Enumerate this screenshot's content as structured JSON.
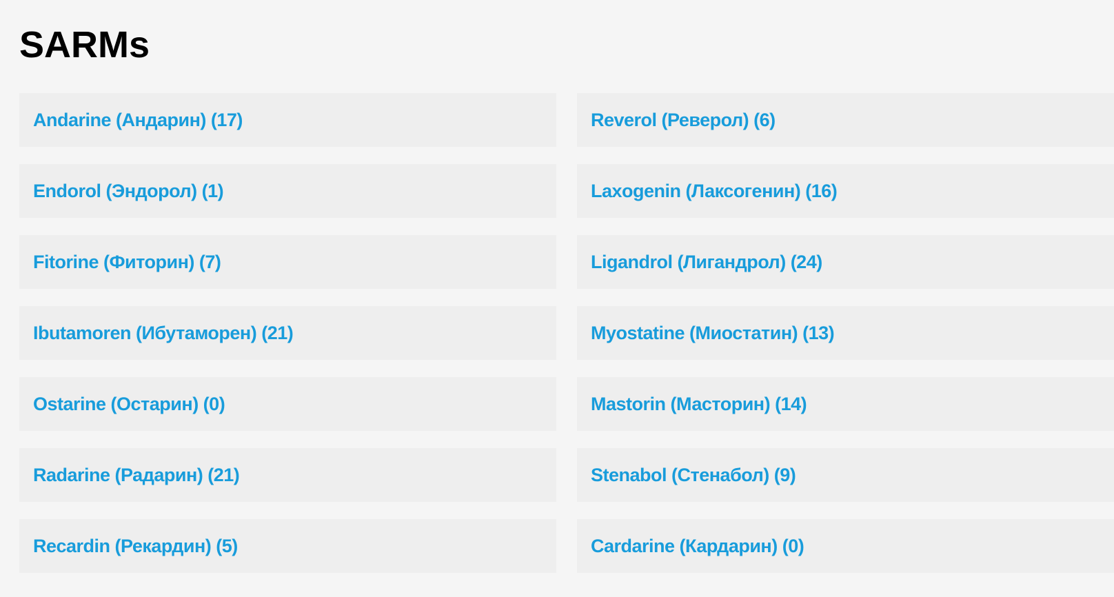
{
  "page": {
    "title": "SARMs",
    "colors": {
      "page_background": "#f5f5f5",
      "row_background": "#eeeeee",
      "link_color": "#189cdb",
      "title_color": "#000000"
    }
  },
  "categories": {
    "left": [
      {
        "label": "Andarine (Андарин) (17)",
        "name_en": "Andarine",
        "name_ru": "Андарин",
        "count": 17
      },
      {
        "label": "Endorol (Эндорол) (1)",
        "name_en": "Endorol",
        "name_ru": "Эндорол",
        "count": 1
      },
      {
        "label": "Fitorine (Фиторин) (7)",
        "name_en": "Fitorine",
        "name_ru": "Фиторин",
        "count": 7
      },
      {
        "label": "Ibutamoren (Ибутаморен) (21)",
        "name_en": "Ibutamoren",
        "name_ru": "Ибутаморен",
        "count": 21
      },
      {
        "label": "Ostarine (Остарин) (0)",
        "name_en": "Ostarine",
        "name_ru": "Остарин",
        "count": 0
      },
      {
        "label": "Radarine (Радарин) (21)",
        "name_en": "Radarine",
        "name_ru": "Радарин",
        "count": 21
      },
      {
        "label": "Recardin (Рекардин) (5)",
        "name_en": "Recardin",
        "name_ru": "Рекардин",
        "count": 5
      }
    ],
    "right": [
      {
        "label": "Reverol (Реверол) (6)",
        "name_en": "Reverol",
        "name_ru": "Реверол",
        "count": 6
      },
      {
        "label": "Laxogenin (Лаксогенин) (16)",
        "name_en": "Laxogenin",
        "name_ru": "Лаксогенин",
        "count": 16
      },
      {
        "label": "Ligandrol (Лигандрол) (24)",
        "name_en": "Ligandrol",
        "name_ru": "Лигандрол",
        "count": 24
      },
      {
        "label": "Myostatine (Миостатин) (13)",
        "name_en": "Myostatine",
        "name_ru": "Миостатин",
        "count": 13
      },
      {
        "label": "Mastorin (Масторин) (14)",
        "name_en": "Mastorin",
        "name_ru": "Масторин",
        "count": 14
      },
      {
        "label": "Stenabol (Стенабол) (9)",
        "name_en": "Stenabol",
        "name_ru": "Стенабол",
        "count": 9
      },
      {
        "label": "Cardarine (Кардарин) (0)",
        "name_en": "Cardarine",
        "name_ru": "Кардарин",
        "count": 0
      }
    ]
  }
}
